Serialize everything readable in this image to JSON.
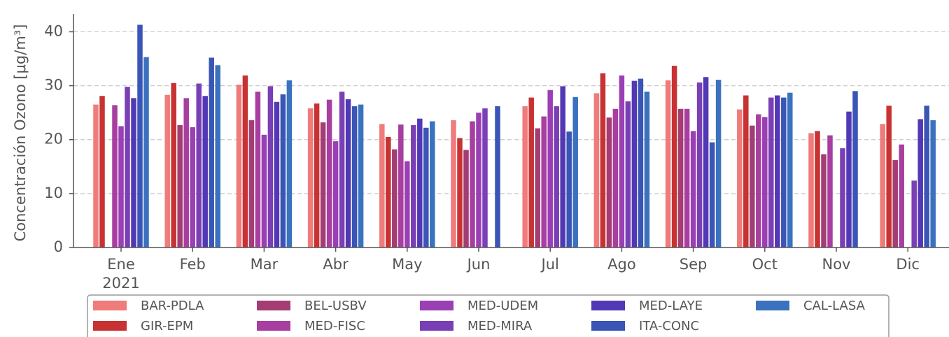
{
  "chart_data": {
    "type": "bar",
    "y_label": "Concentración Ozono [μg/m³]",
    "categories": [
      "Ene",
      "Feb",
      "Mar",
      "Abr",
      "May",
      "Jun",
      "Jul",
      "Ago",
      "Sep",
      "Oct",
      "Nov",
      "Dic"
    ],
    "year_label": "2021",
    "ylim": [
      0,
      43.3
    ],
    "yticks": [
      0,
      10,
      20,
      30,
      40
    ],
    "grid": true,
    "series": [
      {
        "name": "BAR-PDLA",
        "color": "#f07b7b",
        "values": [
          26.5,
          28.3,
          30.2,
          25.8,
          22.9,
          23.6,
          26.2,
          28.6,
          31.0,
          25.6,
          21.2,
          22.9
        ]
      },
      {
        "name": "GIR-EPM",
        "color": "#c83232",
        "values": [
          28.1,
          30.5,
          31.9,
          26.7,
          20.5,
          20.3,
          27.8,
          32.3,
          33.7,
          28.2,
          21.6,
          26.3
        ]
      },
      {
        "name": "BEL-USBV",
        "color": "#a33d73",
        "values": [
          null,
          22.7,
          23.6,
          23.2,
          18.2,
          18.1,
          22.1,
          24.1,
          25.7,
          22.6,
          17.3,
          16.2
        ]
      },
      {
        "name": "MED-FISC",
        "color": "#a83ea0",
        "values": [
          26.4,
          27.7,
          28.9,
          27.4,
          22.8,
          23.4,
          24.3,
          25.7,
          25.7,
          24.7,
          20.8,
          19.1
        ]
      },
      {
        "name": "MED-UDEM",
        "color": "#9b3fb5",
        "values": [
          22.5,
          22.3,
          20.9,
          19.7,
          16.0,
          25.0,
          29.2,
          31.9,
          21.6,
          24.2,
          null,
          null
        ]
      },
      {
        "name": "MED-MIRA",
        "color": "#7a3fb5",
        "values": [
          29.8,
          30.4,
          29.9,
          28.9,
          22.7,
          25.8,
          26.2,
          27.1,
          30.6,
          27.8,
          18.4,
          12.4
        ]
      },
      {
        "name": "MED-LAYE",
        "color": "#5338b5",
        "values": [
          27.7,
          28.1,
          27.0,
          27.5,
          23.9,
          null,
          29.9,
          30.9,
          31.6,
          28.2,
          25.2,
          23.8
        ]
      },
      {
        "name": "ITA-CONC",
        "color": "#3a55b5",
        "values": [
          41.3,
          35.2,
          28.4,
          26.2,
          22.2,
          26.2,
          21.5,
          31.3,
          19.5,
          27.8,
          29.0,
          26.3
        ]
      },
      {
        "name": "CAL-LASA",
        "color": "#3a72bf",
        "values": [
          35.3,
          33.8,
          31.0,
          26.5,
          23.4,
          null,
          27.9,
          28.9,
          31.1,
          28.7,
          null,
          23.6
        ]
      }
    ]
  }
}
